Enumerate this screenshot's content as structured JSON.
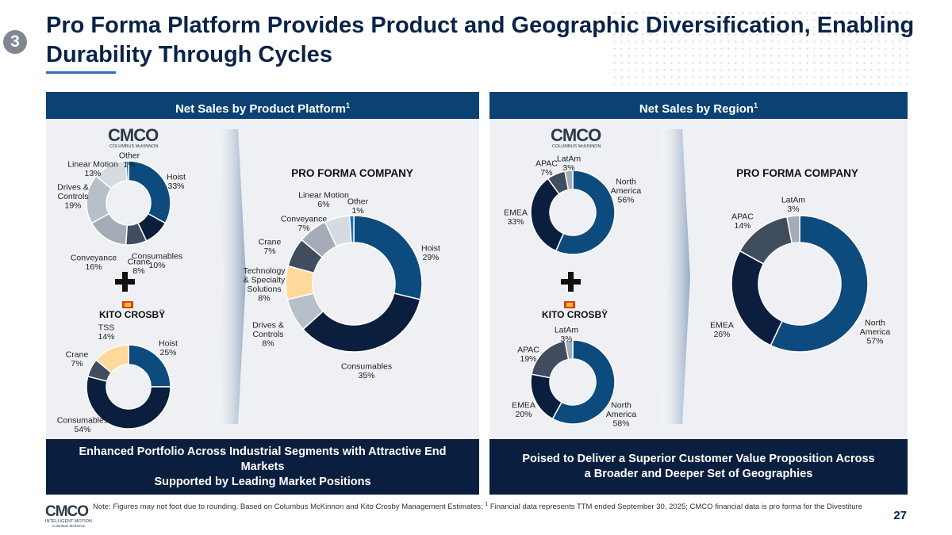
{
  "header": {
    "title_line1": "Pro Forma Platform Provides Product and Geographic Diversification, Enabling",
    "title_line2": "Durability Through Cycles",
    "step": "3"
  },
  "panels": {
    "left": {
      "heading": "Net Sales by Product Platform",
      "heading_sup": "1",
      "footer_line1": "Enhanced Portfolio Across Industrial Segments with Attractive End Markets",
      "footer_line2": "Supported by Leading Market Positions"
    },
    "right": {
      "heading": "Net Sales by Region",
      "heading_sup": "1",
      "footer_line1": "Poised to Deliver a Superior Customer Value Proposition Across",
      "footer_line2": "a Broader and Deeper Set of Geographies"
    }
  },
  "logos": {
    "cmco_mark": "CMCO",
    "cmco_sub": "COLUMBUS McKINNON",
    "kito": "KITO CROSBY",
    "kito_tm": "™",
    "plus": "+"
  },
  "colors": {
    "navy": "#0b4273",
    "dark_navy": "#0a1f3f",
    "chart_blue": "#0d4a7d",
    "chart_dark": "#0c1e3e",
    "slate": "#3f4d5e",
    "gray": "#a3acb7",
    "light_gray": "#d6dbe1",
    "bright_blue": "#1c6bd6",
    "peach": "#ffd89b",
    "panel_bg": "#eef0f3"
  },
  "chart_data": [
    {
      "id": "cmco-product",
      "type": "pie",
      "title": "",
      "series": [
        {
          "label_lines": [
            "Hoist",
            "33%"
          ],
          "name": "Hoist",
          "value": 33,
          "color": "#0d4a7d"
        },
        {
          "label_lines": [
            "Consumables",
            "10%"
          ],
          "name": "Consumables",
          "value": 10,
          "color": "#0c1e3e"
        },
        {
          "label_lines": [
            "Crane",
            "8%"
          ],
          "name": "Crane",
          "value": 8,
          "color": "#3f4d5e"
        },
        {
          "label_lines": [
            "Conveyance",
            "16%"
          ],
          "name": "Conveyance",
          "value": 16,
          "color": "#a3acb7"
        },
        {
          "label_lines": [
            "Drives &",
            "Controls",
            "19%"
          ],
          "name": "Drives & Controls",
          "value": 19,
          "color": "#b7c0ca"
        },
        {
          "label_lines": [
            "Linear Motion",
            "13%"
          ],
          "name": "Linear Motion",
          "value": 13,
          "color": "#d6dbe1"
        },
        {
          "label_lines": [
            "Other",
            "1%"
          ],
          "name": "Other",
          "value": 1,
          "color": "#1c6bd6"
        }
      ]
    },
    {
      "id": "kito-product",
      "type": "pie",
      "title": "",
      "series": [
        {
          "label_lines": [
            "Hoist",
            "25%"
          ],
          "name": "Hoist",
          "value": 25,
          "color": "#0d4a7d"
        },
        {
          "label_lines": [
            "Consumables",
            "54%"
          ],
          "name": "Consumables",
          "value": 54,
          "color": "#0c1e3e"
        },
        {
          "label_lines": [
            "Crane",
            "7%"
          ],
          "name": "Crane",
          "value": 7,
          "color": "#3f4d5e"
        },
        {
          "label_lines": [
            "TSS",
            "14%"
          ],
          "name": "TSS",
          "value": 14,
          "color": "#ffd89b"
        }
      ]
    },
    {
      "id": "proforma-product",
      "type": "pie",
      "title": "PRO FORMA COMPANY",
      "series": [
        {
          "label_lines": [
            "Hoist",
            "29%"
          ],
          "name": "Hoist",
          "value": 29,
          "color": "#0d4a7d"
        },
        {
          "label_lines": [
            "Consumables",
            "35%"
          ],
          "name": "Consumables",
          "value": 35,
          "color": "#0c1e3e"
        },
        {
          "label_lines": [
            "Drives &",
            "Controls",
            "8%"
          ],
          "name": "Drives & Controls",
          "value": 8,
          "color": "#b7c0ca"
        },
        {
          "label_lines": [
            "Technology",
            "& Specialty",
            "Solutions",
            "8%"
          ],
          "name": "Technology & Specialty Solutions",
          "value": 8,
          "color": "#ffd89b"
        },
        {
          "label_lines": [
            "Crane",
            "7%"
          ],
          "name": "Crane",
          "value": 7,
          "color": "#3f4d5e"
        },
        {
          "label_lines": [
            "Conveyance",
            "7%"
          ],
          "name": "Conveyance",
          "value": 7,
          "color": "#a3acb7"
        },
        {
          "label_lines": [
            "Linear Motion",
            "6%"
          ],
          "name": "Linear Motion",
          "value": 6,
          "color": "#d6dbe1"
        },
        {
          "label_lines": [
            "Other",
            "1%"
          ],
          "name": "Other",
          "value": 1,
          "color": "#1c6bd6"
        }
      ]
    },
    {
      "id": "cmco-region",
      "type": "pie",
      "title": "",
      "series": [
        {
          "label_lines": [
            "North",
            "America",
            "56%"
          ],
          "name": "North America",
          "value": 56,
          "color": "#0d4a7d"
        },
        {
          "label_lines": [
            "EMEA",
            "33%"
          ],
          "name": "EMEA",
          "value": 33,
          "color": "#0c1e3e"
        },
        {
          "label_lines": [
            "APAC",
            "7%"
          ],
          "name": "APAC",
          "value": 7,
          "color": "#3f4d5e"
        },
        {
          "label_lines": [
            "LatAm",
            "3%"
          ],
          "name": "LatAm",
          "value": 3,
          "color": "#a3acb7"
        }
      ]
    },
    {
      "id": "kito-region",
      "type": "pie",
      "title": "",
      "series": [
        {
          "label_lines": [
            "North",
            "America",
            "58%"
          ],
          "name": "North America",
          "value": 58,
          "color": "#0d4a7d"
        },
        {
          "label_lines": [
            "EMEA",
            "20%"
          ],
          "name": "EMEA",
          "value": 20,
          "color": "#0c1e3e"
        },
        {
          "label_lines": [
            "APAC",
            "19%"
          ],
          "name": "APAC",
          "value": 19,
          "color": "#3f4d5e"
        },
        {
          "label_lines": [
            "LatAm",
            "3%"
          ],
          "name": "LatAm",
          "value": 3,
          "color": "#a3acb7"
        }
      ]
    },
    {
      "id": "proforma-region",
      "type": "pie",
      "title": "PRO FORMA COMPANY",
      "series": [
        {
          "label_lines": [
            "North",
            "America",
            "57%"
          ],
          "name": "North America",
          "value": 57,
          "color": "#0d4a7d"
        },
        {
          "label_lines": [
            "EMEA",
            "26%"
          ],
          "name": "EMEA",
          "value": 26,
          "color": "#0c1e3e"
        },
        {
          "label_lines": [
            "APAC",
            "14%"
          ],
          "name": "APAC",
          "value": 14,
          "color": "#3f4d5e"
        },
        {
          "label_lines": [
            "LatAm",
            "3%"
          ],
          "name": "LatAm",
          "value": 3,
          "color": "#a3acb7"
        }
      ]
    }
  ],
  "footer": {
    "note": "Note: Figures may not foot due to rounding. Based on Columbus McKinnon and Kito Crosby Management Estimates;",
    "note_sup": "1",
    "note_tail": "Financial data represents TTM ended September 30, 2025; CMCO financial data is pro forma for the Divestiture",
    "brand_mark": "CMCO",
    "brand_line1": "INTELLIGENT MOTION",
    "brand_line2": "Columbus McKinnon",
    "page_number": "27"
  }
}
